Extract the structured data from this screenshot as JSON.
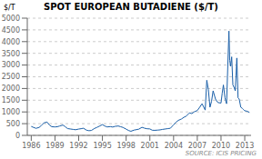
{
  "chart_data": {
    "type": "line",
    "title": "SPOT EUROPEAN BUTADIENE ($/T)",
    "y_label": "$/T",
    "annotations": [
      "SOURCE: ICIS PRICING"
    ],
    "x": [
      1986,
      1986.3,
      1986.6,
      1987,
      1987.3,
      1987.6,
      1988,
      1988.3,
      1988.6,
      1989,
      1989.3,
      1989.6,
      1990,
      1990.3,
      1990.6,
      1991,
      1991.3,
      1991.6,
      1992,
      1992.3,
      1992.6,
      1993,
      1993.3,
      1993.6,
      1994,
      1994.3,
      1994.6,
      1995,
      1995.3,
      1995.6,
      1996,
      1996.3,
      1996.6,
      1997,
      1997.3,
      1997.6,
      1998,
      1998.3,
      1998.6,
      1999,
      1999.3,
      1999.6,
      2000,
      2000.3,
      2000.6,
      2001,
      2001.3,
      2001.6,
      2002,
      2002.3,
      2002.6,
      2003,
      2003.3,
      2003.6,
      2004,
      2004.3,
      2004.6,
      2005,
      2005.3,
      2005.6,
      2006,
      2006.3,
      2006.6,
      2007,
      2007.3,
      2007.6,
      2008,
      2008.2,
      2008.4,
      2008.6,
      2008.8,
      2009,
      2009.3,
      2009.6,
      2010,
      2010.15,
      2010.3,
      2010.5,
      2010.7,
      2011,
      2011.1,
      2011.2,
      2011.35,
      2011.5,
      2011.65,
      2011.8,
      2012,
      2012.15,
      2012.3,
      2012.5,
      2012.7,
      2012.85,
      2013,
      2013.3,
      2013.6
    ],
    "values": [
      380,
      340,
      300,
      340,
      430,
      530,
      570,
      440,
      370,
      360,
      370,
      400,
      440,
      370,
      290,
      270,
      255,
      240,
      270,
      285,
      305,
      220,
      200,
      210,
      295,
      340,
      390,
      460,
      400,
      360,
      375,
      355,
      385,
      400,
      370,
      340,
      265,
      210,
      175,
      225,
      245,
      265,
      345,
      310,
      285,
      275,
      220,
      215,
      225,
      235,
      255,
      275,
      290,
      305,
      450,
      560,
      640,
      700,
      770,
      820,
      960,
      930,
      1000,
      1060,
      1200,
      1350,
      1080,
      2350,
      1950,
      1200,
      1450,
      1900,
      1550,
      1400,
      1380,
      1800,
      2150,
      1600,
      1350,
      4450,
      3200,
      2950,
      3350,
      2150,
      2050,
      1900,
      3300,
      1600,
      1550,
      1200,
      1150,
      1100,
      1050,
      1030,
      980
    ],
    "color": "#1a5fa8",
    "xlim": [
      1985.5,
      2013.8
    ],
    "xticks": [
      1986,
      1989,
      1992,
      1995,
      1998,
      2001,
      2004,
      2007,
      2010,
      2013
    ],
    "ylim": [
      0,
      5000
    ],
    "yticks": [
      0,
      500,
      1000,
      1500,
      2000,
      2500,
      3000,
      3500,
      4000,
      4500,
      5000
    ],
    "grid": "y"
  }
}
